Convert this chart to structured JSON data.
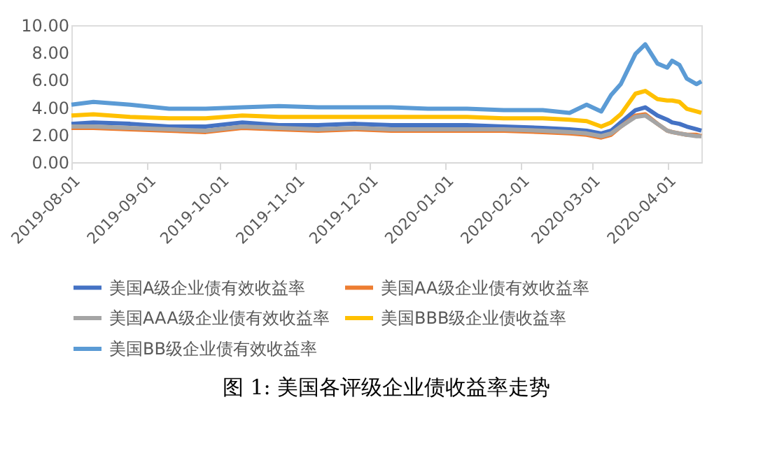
{
  "chart_data": {
    "type": "line",
    "title": "图 1: 美国各评级企业债收益率走势",
    "x": [
      "2019-08-01",
      "2019-08-10",
      "2019-08-25",
      "2019-09-10",
      "2019-09-25",
      "2019-10-10",
      "2019-10-25",
      "2019-11-10",
      "2019-11-25",
      "2019-12-10",
      "2019-12-25",
      "2020-01-10",
      "2020-01-25",
      "2020-02-10",
      "2020-02-21",
      "2020-02-28",
      "2020-03-05",
      "2020-03-09",
      "2020-03-13",
      "2020-03-19",
      "2020-03-23",
      "2020-03-28",
      "2020-04-01",
      "2020-04-03",
      "2020-04-06",
      "2020-04-09",
      "2020-04-13",
      "2020-04-15"
    ],
    "series": [
      {
        "name": "美国A级企业债有效收益率",
        "color": "#4472c4",
        "values": [
          2.8,
          2.9,
          2.8,
          2.6,
          2.6,
          2.9,
          2.7,
          2.7,
          2.8,
          2.7,
          2.7,
          2.7,
          2.6,
          2.5,
          2.4,
          2.3,
          2.1,
          2.3,
          2.9,
          3.8,
          4.0,
          3.4,
          3.1,
          2.9,
          2.8,
          2.6,
          2.4,
          2.3
        ]
      },
      {
        "name": "美国AA级企业债有效收益率",
        "color": "#ed7d31",
        "values": [
          2.5,
          2.5,
          2.4,
          2.3,
          2.2,
          2.5,
          2.4,
          2.3,
          2.4,
          2.3,
          2.3,
          2.3,
          2.3,
          2.2,
          2.1,
          2.0,
          1.8,
          2.0,
          2.6,
          3.4,
          3.5,
          2.8,
          2.3,
          2.2,
          2.1,
          2.0,
          2.0,
          1.9
        ]
      },
      {
        "name": "美国AAA级企业债有效收益率",
        "color": "#a5a5a5",
        "values": [
          2.6,
          2.6,
          2.5,
          2.4,
          2.3,
          2.6,
          2.5,
          2.4,
          2.5,
          2.4,
          2.4,
          2.4,
          2.4,
          2.3,
          2.2,
          2.1,
          1.9,
          2.1,
          2.6,
          3.3,
          3.4,
          2.8,
          2.3,
          2.2,
          2.1,
          2.0,
          1.9,
          1.9
        ]
      },
      {
        "name": "美国BBB级企业债收益率",
        "color": "#ffc000",
        "values": [
          3.4,
          3.5,
          3.3,
          3.2,
          3.2,
          3.4,
          3.3,
          3.3,
          3.3,
          3.3,
          3.3,
          3.3,
          3.2,
          3.2,
          3.1,
          3.0,
          2.6,
          2.9,
          3.5,
          5.0,
          5.2,
          4.6,
          4.5,
          4.5,
          4.4,
          3.9,
          3.7,
          3.6
        ]
      },
      {
        "name": "美国BB级企业债有效收益率",
        "color": "#5b9bd5",
        "values": [
          4.2,
          4.4,
          4.2,
          3.9,
          3.9,
          4.0,
          4.1,
          4.0,
          4.0,
          4.0,
          3.9,
          3.9,
          3.8,
          3.8,
          3.6,
          4.2,
          3.7,
          4.9,
          5.7,
          7.9,
          8.6,
          7.2,
          6.9,
          7.4,
          7.1,
          6.1,
          5.7,
          5.9
        ]
      }
    ],
    "xlim": [
      "2019-08-01",
      "2020-04-15"
    ],
    "xticks": [
      "2019-08-01",
      "2019-09-01",
      "2019-10-01",
      "2019-11-01",
      "2019-12-01",
      "2020-01-01",
      "2020-02-01",
      "2020-03-01",
      "2020-04-01"
    ],
    "ylim": [
      0,
      10
    ],
    "yticks": [
      {
        "value": 0,
        "label": "0.00"
      },
      {
        "value": 2,
        "label": "2.00"
      },
      {
        "value": 4,
        "label": "4.00"
      },
      {
        "value": 6,
        "label": "6.00"
      },
      {
        "value": 8,
        "label": "8.00"
      },
      {
        "value": 10,
        "label": "10.00"
      }
    ],
    "grid": false,
    "legend": "bottom",
    "marker": "none",
    "line_style": "solid"
  }
}
